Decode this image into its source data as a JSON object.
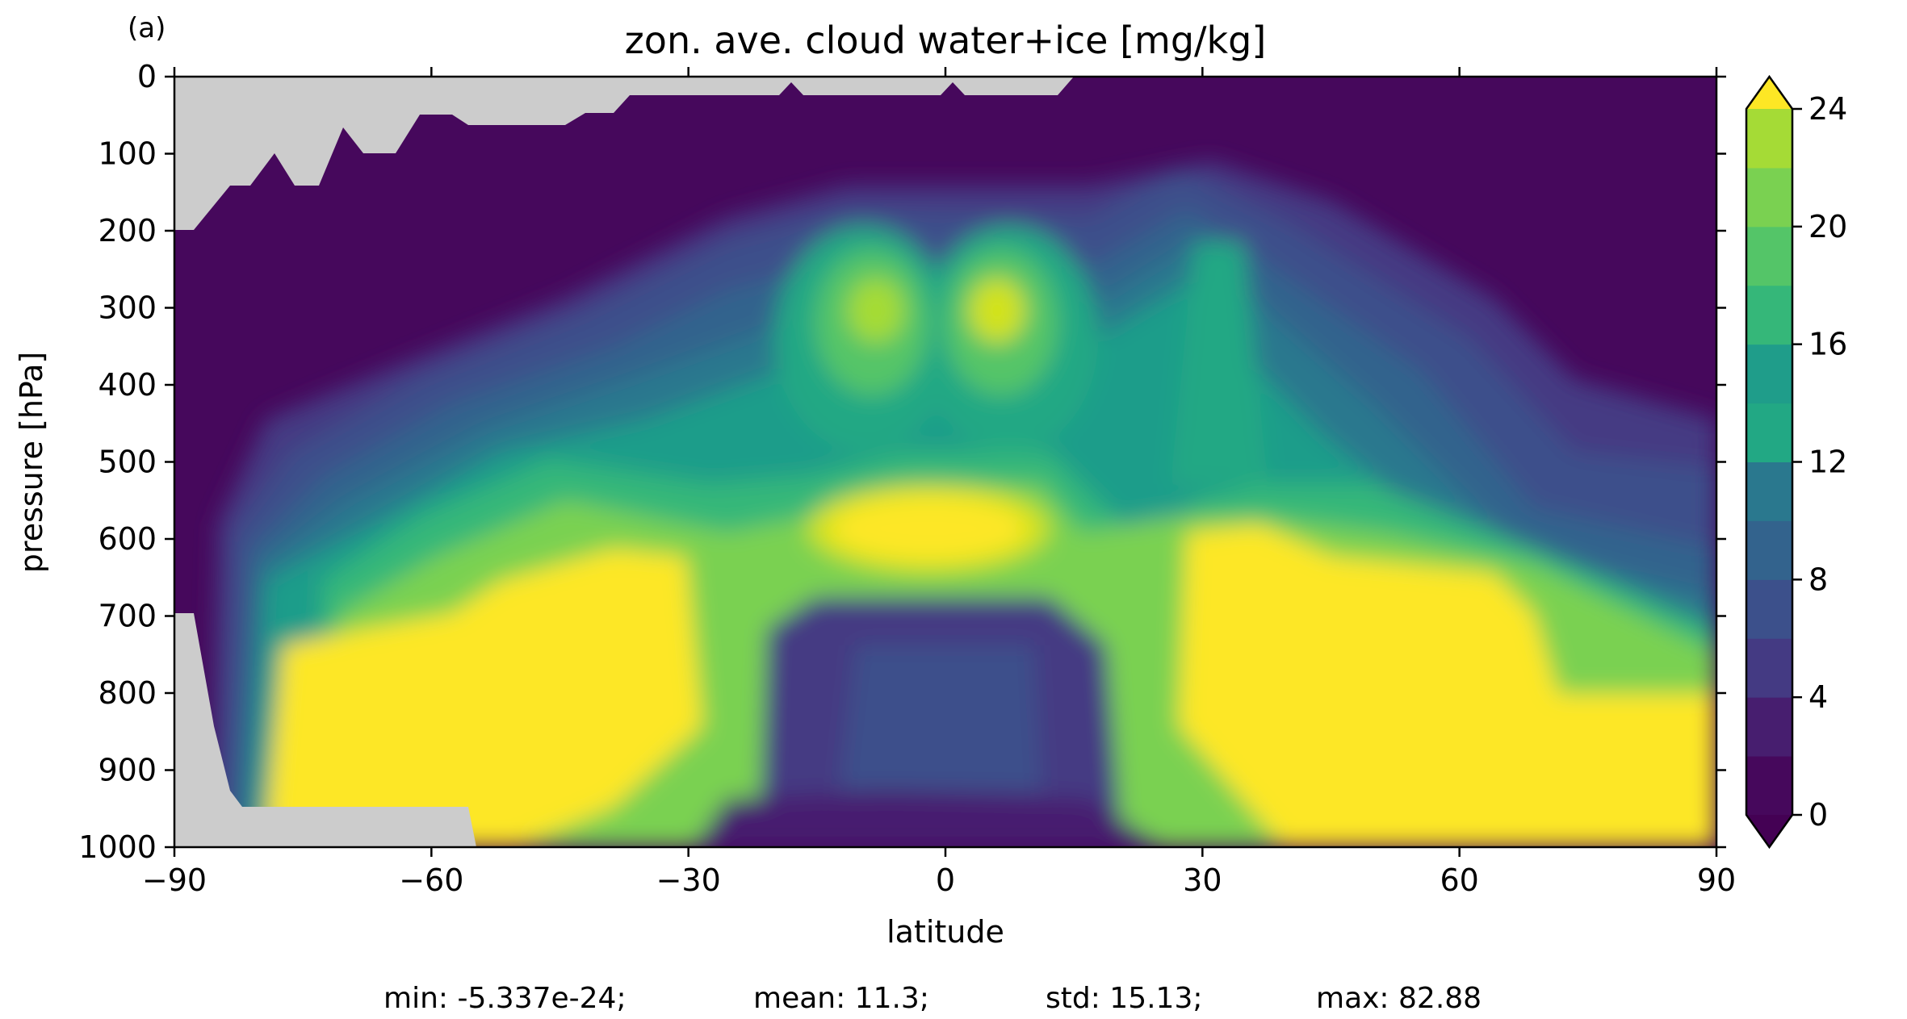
{
  "panel_label": "(a)",
  "chart_data": {
    "type": "contourf",
    "title": "zon. ave. cloud water+ice [mg/kg]",
    "xlabel": "latitude",
    "ylabel": "pressure [hPa]",
    "xlim": [
      -90,
      90
    ],
    "ylim": [
      1000,
      0
    ],
    "xticks": [
      -90,
      -60,
      -30,
      0,
      30,
      60,
      90
    ],
    "xtick_labels": [
      "−90",
      "−60",
      "−30",
      "0",
      "30",
      "60",
      "90"
    ],
    "yticks": [
      0,
      100,
      200,
      300,
      400,
      500,
      600,
      700,
      800,
      900,
      1000
    ],
    "ytick_labels": [
      "0",
      "100",
      "200",
      "300",
      "400",
      "500",
      "600",
      "700",
      "800",
      "900",
      "1000"
    ],
    "colorbar": {
      "levels": [
        0,
        2,
        4,
        6,
        8,
        10,
        12,
        14,
        16,
        18,
        20,
        22,
        24
      ],
      "ticks": [
        0,
        4,
        8,
        12,
        16,
        20,
        24
      ],
      "tick_labels": [
        "0",
        "4",
        "8",
        "12",
        "16",
        "20",
        "24"
      ],
      "extend": "both",
      "colors": [
        "#46085c",
        "#471e6f",
        "#443a83",
        "#3c508b",
        "#33638d",
        "#2a788e",
        "#22a884",
        "#1f9d8a",
        "#35b779",
        "#54c568",
        "#7ad151",
        "#a5db36",
        "#d2e21b",
        "#fde725"
      ],
      "under_color": "#440154",
      "over_color": "#fde725"
    },
    "masked_color": "#cccccc",
    "stats": {
      "min": "min: -5.337e-24;",
      "mean": "mean: 11.3;",
      "std": "std: 15.13;",
      "max": "max: 82.88"
    },
    "grid": false
  }
}
